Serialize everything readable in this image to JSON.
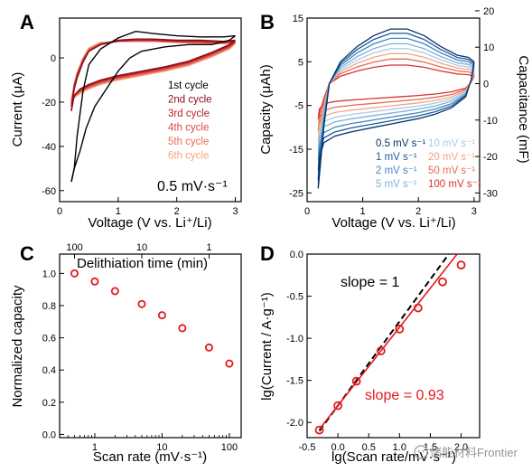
{
  "watermark": "储能材料Frontier",
  "chart_data": [
    {
      "id": "A",
      "type": "line",
      "panel_label": "A",
      "xlabel": "Voltage (V vs. Li⁺/Li)",
      "ylabel": "Current (μA)",
      "xlim": [
        0,
        3.1
      ],
      "ylim": [
        -65,
        18
      ],
      "xticks": [
        0,
        1,
        2,
        3
      ],
      "yticks": [
        -60,
        -40,
        -20,
        0
      ],
      "annotation": "0.5 mV·s⁻¹",
      "legend_position": "right",
      "series": [
        {
          "name": "1st cycle",
          "color": "#000000",
          "forward_x": [
            0.2,
            0.25,
            0.3,
            0.4,
            0.5,
            0.7,
            1.0,
            1.3,
            1.6,
            2.0,
            2.4,
            2.8,
            3.0
          ],
          "forward_y": [
            -56,
            -50,
            -35,
            -15,
            -3,
            4,
            9,
            12,
            11,
            10,
            9.5,
            9.5,
            10
          ],
          "reverse_x": [
            3.0,
            2.9,
            2.6,
            2.2,
            1.8,
            1.4,
            1.2,
            1.0,
            0.8,
            0.6,
            0.45,
            0.35,
            0.25,
            0.2
          ],
          "reverse_y": [
            10,
            8,
            6,
            6,
            5,
            3,
            0,
            -6,
            -14,
            -22,
            -32,
            -42,
            -50,
            -56
          ]
        },
        {
          "name": "2nd cycle",
          "color": "#8b0a1a",
          "forward_x": [
            0.2,
            0.25,
            0.3,
            0.4,
            0.5,
            0.7,
            1.0,
            1.3,
            1.6,
            2.0,
            2.4,
            2.8,
            3.0
          ],
          "forward_y": [
            -24,
            -14,
            -9,
            -2,
            3,
            6,
            8,
            8.5,
            8.5,
            8,
            8,
            7.5,
            8
          ],
          "reverse_x": [
            3.0,
            2.9,
            2.6,
            2.2,
            1.8,
            1.4,
            1.0,
            0.7,
            0.5,
            0.35,
            0.25,
            0.2
          ],
          "reverse_y": [
            8,
            6,
            2.5,
            -1.5,
            -4,
            -6,
            -8,
            -10,
            -12,
            -14,
            -17,
            -24
          ]
        },
        {
          "name": "3rd cycle",
          "color": "#b51f2c",
          "forward_x": [
            0.2,
            0.25,
            0.3,
            0.4,
            0.5,
            0.7,
            1.0,
            1.3,
            1.6,
            2.0,
            2.4,
            2.8,
            3.0
          ],
          "forward_y": [
            -22,
            -13,
            -8,
            -1.5,
            3,
            6,
            7.5,
            8,
            8,
            7.5,
            7.5,
            7,
            7.5
          ],
          "reverse_x": [
            3.0,
            2.9,
            2.6,
            2.2,
            1.8,
            1.4,
            1.0,
            0.7,
            0.5,
            0.35,
            0.25,
            0.2
          ],
          "reverse_y": [
            7.5,
            5.5,
            2,
            -2,
            -4.5,
            -6.5,
            -8.5,
            -10.5,
            -12.5,
            -14.5,
            -17,
            -22
          ]
        },
        {
          "name": "4th cycle",
          "color": "#d84a40",
          "forward_x": [
            0.2,
            0.25,
            0.3,
            0.4,
            0.5,
            0.7,
            1.0,
            1.3,
            1.6,
            2.0,
            2.4,
            2.8,
            3.0
          ],
          "forward_y": [
            -21,
            -12.5,
            -7.5,
            -1,
            3.5,
            6.5,
            7.5,
            8,
            8,
            7.5,
            7,
            7,
            7
          ],
          "reverse_x": [
            3.0,
            2.9,
            2.6,
            2.2,
            1.8,
            1.4,
            1.0,
            0.7,
            0.5,
            0.35,
            0.25,
            0.2
          ],
          "reverse_y": [
            7,
            5,
            1.5,
            -2.5,
            -5,
            -7,
            -9,
            -11,
            -13,
            -15,
            -17,
            -21
          ]
        },
        {
          "name": "5th cycle",
          "color": "#ec6d55",
          "forward_x": [
            0.2,
            0.25,
            0.3,
            0.4,
            0.5,
            0.7,
            1.0,
            1.3,
            1.6,
            2.0,
            2.4,
            2.8,
            3.0
          ],
          "forward_y": [
            -20,
            -12,
            -7,
            -0.5,
            4,
            6.5,
            7.5,
            7.5,
            7.5,
            7,
            7,
            6.5,
            7
          ],
          "reverse_x": [
            3.0,
            2.9,
            2.6,
            2.2,
            1.8,
            1.4,
            1.0,
            0.7,
            0.5,
            0.35,
            0.25,
            0.2
          ],
          "reverse_y": [
            7,
            4.5,
            1,
            -3,
            -5.5,
            -7.5,
            -9.5,
            -11.5,
            -13.5,
            -15.5,
            -17.5,
            -20
          ]
        },
        {
          "name": "6th cycle",
          "color": "#f4a582",
          "forward_x": [
            0.2,
            0.25,
            0.3,
            0.4,
            0.5,
            0.7,
            1.0,
            1.3,
            1.6,
            2.0,
            2.4,
            2.8,
            3.0
          ],
          "forward_y": [
            -19,
            -11.5,
            -6.5,
            0,
            4.5,
            7,
            7.5,
            7.5,
            7.5,
            7,
            6.5,
            6.5,
            6.5
          ],
          "reverse_x": [
            3.0,
            2.9,
            2.6,
            2.2,
            1.8,
            1.4,
            1.0,
            0.7,
            0.5,
            0.35,
            0.25,
            0.2
          ],
          "reverse_y": [
            6.5,
            4,
            0.5,
            -3.5,
            -6,
            -8,
            -10,
            -12,
            -14,
            -16,
            -18,
            -19
          ]
        }
      ]
    },
    {
      "id": "B",
      "type": "line",
      "panel_label": "B",
      "xlabel": "Voltage (V vs. Li⁺/Li)",
      "ylabel": "Capacity (μAh)",
      "y2label": "Capacitance (mF)",
      "xlim": [
        0,
        3.1
      ],
      "ylim": [
        -27,
        15
      ],
      "y2lim": [
        -32.4,
        18
      ],
      "xticks": [
        0,
        1,
        2,
        3
      ],
      "yticks": [
        -25,
        -15,
        -5,
        5,
        15
      ],
      "y2ticks": [
        -30,
        -20,
        -10,
        0,
        10,
        20
      ],
      "legend_position": "lower-right",
      "series": [
        {
          "name": "0.5 mV s⁻¹",
          "color": "#08306b",
          "scale": 1.0
        },
        {
          "name": "1 mV s⁻¹",
          "color": "#1d5b9b",
          "scale": 0.92
        },
        {
          "name": "2 mV s⁻¹",
          "color": "#4285c2",
          "scale": 0.83
        },
        {
          "name": "5 mV s⁻¹",
          "color": "#7db3d9",
          "scale": 0.73
        },
        {
          "name": "10 mV s⁻¹",
          "color": "#a9cbe6",
          "scale": 0.64
        },
        {
          "name": "20 mV s⁻¹",
          "color": "#f4a582",
          "scale": 0.55
        },
        {
          "name": "50 mV s⁻¹",
          "color": "#e76a55",
          "scale": 0.45
        },
        {
          "name": "100 mV s⁻¹",
          "color": "#d6342a",
          "scale": 0.34
        }
      ],
      "base_curve": {
        "forward_x": [
          0.2,
          0.3,
          0.4,
          0.6,
          0.9,
          1.2,
          1.5,
          1.8,
          2.1,
          2.4,
          2.7,
          2.9,
          3.0
        ],
        "forward_y": [
          -24,
          -10,
          0,
          5,
          8.5,
          11,
          12.5,
          12.5,
          11,
          8.5,
          6.5,
          6,
          5
        ],
        "reverse_x": [
          3.0,
          2.95,
          2.85,
          2.6,
          2.3,
          2.0,
          1.6,
          1.2,
          0.8,
          0.5,
          0.3,
          0.22,
          0.2
        ],
        "reverse_y": [
          5,
          1,
          -3,
          -5.5,
          -7,
          -8,
          -9,
          -10,
          -11,
          -12,
          -13.5,
          -17,
          -24
        ]
      }
    },
    {
      "id": "C",
      "type": "scatter",
      "panel_label": "C",
      "xlabel": "Scan rate (mV·s⁻¹)",
      "ylabel": "Normalized capacity",
      "x2label": "Delithiation time (min)",
      "xscale": "log",
      "xlim": [
        0.3,
        150
      ],
      "ylim": [
        -0.02,
        1.12
      ],
      "xticks": [
        1,
        10,
        100
      ],
      "xtick_labels": [
        "1",
        "10",
        "100"
      ],
      "x2ticks_min": [
        100,
        10,
        1
      ],
      "x2tick_labels": [
        "100",
        "10",
        "1"
      ],
      "yticks": [
        0,
        0.2,
        0.4,
        0.6,
        0.8,
        1.0
      ],
      "ytick_labels": [
        "0.0",
        "0.2",
        "0.4",
        "0.6",
        "0.8",
        "1.0"
      ],
      "marker_color": "#e31a1c",
      "x": [
        0.5,
        1,
        2,
        5,
        10,
        20,
        50,
        100
      ],
      "y": [
        1.0,
        0.95,
        0.89,
        0.81,
        0.74,
        0.66,
        0.54,
        0.44
      ]
    },
    {
      "id": "D",
      "type": "scatter",
      "panel_label": "D",
      "xlabel": "lg(Scan rate/mV·s⁻¹)",
      "ylabel": "lg(Current / A·g⁻¹)",
      "xlim": [
        -0.5,
        2.3
      ],
      "ylim": [
        -2.18,
        0.0
      ],
      "xticks": [
        -0.5,
        0.0,
        0.5,
        1.0,
        1.5,
        2.0
      ],
      "xtick_labels": [
        "-0.5",
        "0.0",
        "0.5",
        "1.0",
        "1.5",
        "2.0"
      ],
      "yticks": [
        -2.0,
        -1.5,
        -1.0,
        -0.5,
        0.0
      ],
      "ytick_labels": [
        "-2.0",
        "-1.5",
        "-1.0",
        "-0.5",
        "0.0"
      ],
      "marker_color": "#e31a1c",
      "x": [
        -0.301,
        0.0,
        0.301,
        0.699,
        1.0,
        1.301,
        1.699,
        2.0
      ],
      "y": [
        -2.09,
        -1.8,
        -1.51,
        -1.15,
        -0.89,
        -0.64,
        -0.33,
        -0.13
      ],
      "fit_line": {
        "slope": 0.93,
        "intercept": -1.8,
        "x_range": [
          -0.301,
          1.95
        ],
        "color": "#e31a1c",
        "label": "slope = 0.93"
      },
      "reference_line": {
        "slope": 1,
        "intercept": -1.8,
        "x_range": [
          -0.301,
          1.95
        ],
        "color": "#000000",
        "style": "dashed",
        "label": "slope = 1"
      }
    }
  ]
}
